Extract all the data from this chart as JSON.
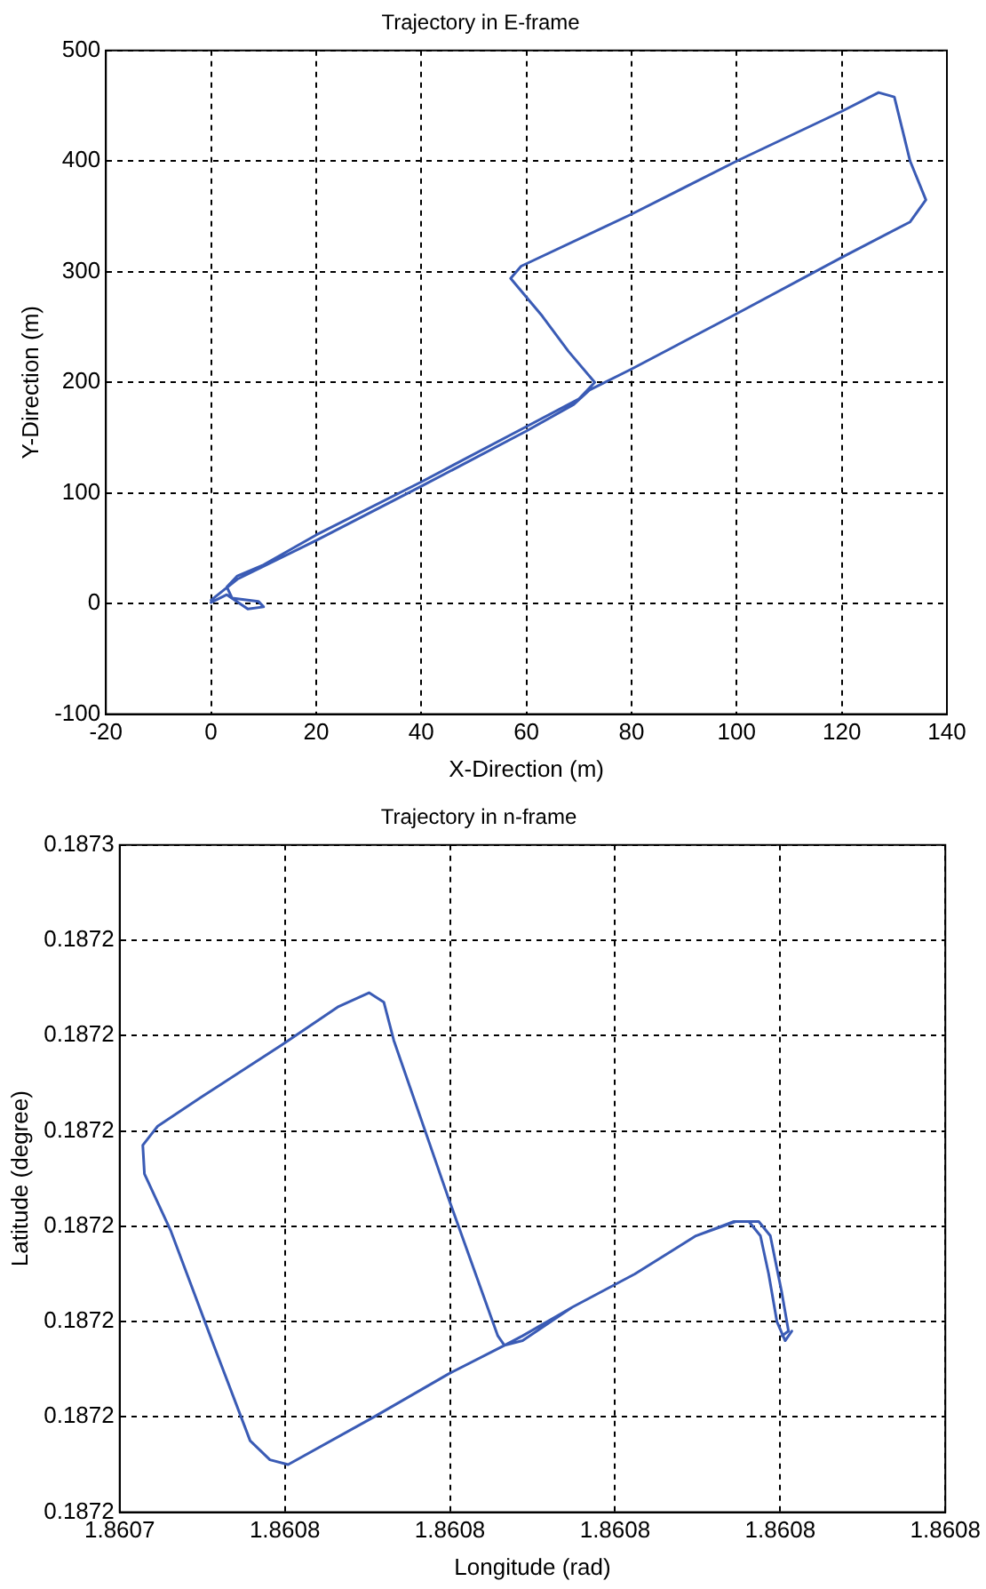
{
  "chart_data": [
    {
      "type": "line",
      "title": "Trajectory in E-frame",
      "xlabel": "X-Direction (m)",
      "ylabel": "Y-Direction (m)",
      "grid": true,
      "xlim": [
        -20,
        140
      ],
      "ylim": [
        -100,
        500
      ],
      "xticks": [
        -20,
        0,
        20,
        40,
        60,
        80,
        100,
        120,
        140
      ],
      "yticks": [
        -100,
        0,
        100,
        200,
        300,
        400,
        500
      ],
      "series": [
        {
          "color": "#3a5bb5",
          "x": [
            0,
            3,
            7,
            10,
            9,
            4,
            3,
            5,
            10,
            20,
            40,
            60,
            70,
            73,
            68,
            63,
            57,
            59,
            80,
            100,
            120,
            127,
            130,
            133,
            136,
            133,
            120,
            100,
            80,
            72,
            69,
            60,
            40,
            20,
            5,
            0
          ],
          "values": [
            1,
            8,
            -5,
            -3,
            2,
            5,
            15,
            25,
            35,
            62,
            110,
            160,
            185,
            200,
            228,
            260,
            294,
            305,
            352,
            400,
            445,
            462,
            458,
            400,
            365,
            345,
            313,
            262,
            212,
            193,
            180,
            156,
            106,
            57,
            22,
            3
          ]
        }
      ]
    },
    {
      "type": "line",
      "title": "Trajectory in n-frame",
      "xlabel": "Longitude (rad)",
      "ylabel": "Latitude (degree)",
      "grid": true,
      "xlim": [
        1.86074,
        1.86079
      ],
      "ylim": [
        0.187236,
        0.18725
      ],
      "xticks": [
        {
          "value": 1.86074,
          "label": "1.8607"
        },
        {
          "value": 1.86075,
          "label": "1.8608"
        },
        {
          "value": 1.86076,
          "label": "1.8608"
        },
        {
          "value": 1.86077,
          "label": "1.8608"
        },
        {
          "value": 1.86078,
          "label": "1.8608"
        },
        {
          "value": 1.86079,
          "label": "1.8608"
        }
      ],
      "yticks": [
        {
          "value": 0.187236,
          "label": "0.1872"
        },
        {
          "value": 0.187238,
          "label": "0.1872"
        },
        {
          "value": 0.18724,
          "label": "0.1872"
        },
        {
          "value": 0.187242,
          "label": "0.1872"
        },
        {
          "value": 0.187244,
          "label": "0.1872"
        },
        {
          "value": 0.187246,
          "label": "0.1872"
        },
        {
          "value": 0.187248,
          "label": "0.1872"
        },
        {
          "value": 0.18725,
          "label": "0.1873"
        }
      ],
      "series": [
        {
          "color": "#3a5bb5",
          "x": [
            1.8607801,
            1.8607805,
            1.8607803,
            1.8607801,
            1.8607794,
            1.8607787,
            1.8607773,
            1.8607749,
            1.8607712,
            1.8607674,
            1.8607644,
            1.8607633,
            1.8607629,
            1.8607599,
            1.8607566,
            1.860756,
            1.8607551,
            1.8607532,
            1.8607498,
            1.8607449,
            1.8607423,
            1.8607414,
            1.8607415,
            1.8607431,
            1.8607457,
            1.8607479,
            1.8607491,
            1.8607502,
            1.8607554,
            1.8607599,
            1.8607633,
            1.8607644,
            1.8607674,
            1.8607712,
            1.8607749,
            1.8607772,
            1.8607781,
            1.8607788,
            1.8607793,
            1.8607798,
            1.8607803,
            1.8607807
          ],
          "values": [
            0.1872397,
            0.1872398,
            0.1872402,
            0.1872406,
            0.1872418,
            0.1872421,
            0.1872421,
            0.1872418,
            0.187241,
            0.1872403,
            0.1872397,
            0.1872395,
            0.1872397,
            0.1872426,
            0.1872459,
            0.1872467,
            0.1872469,
            0.1872466,
            0.1872458,
            0.1872447,
            0.1872441,
            0.1872437,
            0.1872431,
            0.1872419,
            0.1872395,
            0.1872375,
            0.1872371,
            0.187237,
            0.187238,
            0.1872389,
            0.1872395,
            0.1872396,
            0.1872403,
            0.187241,
            0.1872418,
            0.1872421,
            0.1872421,
            0.1872418,
            0.187241,
            0.18724,
            0.1872396,
            0.1872398
          ]
        }
      ]
    }
  ]
}
